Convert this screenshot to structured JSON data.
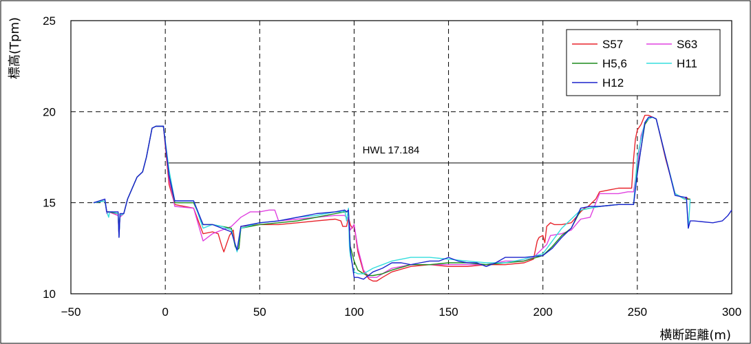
{
  "chart_data": {
    "type": "line",
    "title": "",
    "xlabel": "横断距離(m)",
    "ylabel": "標高(Tpm)",
    "xlim": [
      -50,
      300
    ],
    "ylim": [
      10,
      25
    ],
    "x_ticks": [
      -50,
      0,
      50,
      100,
      150,
      200,
      250,
      300
    ],
    "y_ticks": [
      10,
      15,
      20,
      25
    ],
    "x_tick_labels": [
      "−50",
      "0",
      "50",
      "100",
      "150",
      "200",
      "250",
      "300"
    ],
    "y_tick_labels": [
      "10",
      "15",
      "20",
      "25"
    ],
    "grid": true,
    "legend_position": "top-right",
    "annotations": [
      {
        "text": "HWL 17.184",
        "type": "hline",
        "y": 17.184,
        "x_range": [
          1,
          249
        ]
      }
    ],
    "series": [
      {
        "name": "S57",
        "color": "#e8222a",
        "x": [
          -38,
          -32,
          -31,
          -30,
          -25,
          -24.5,
          -24,
          -22,
          -20,
          -15,
          -12,
          -10,
          -7,
          -5,
          -1,
          2,
          5,
          15,
          20,
          25,
          28,
          30,
          31,
          32,
          34,
          36,
          37,
          38,
          39,
          40,
          50,
          60,
          70,
          80,
          90,
          93,
          94,
          96,
          97,
          98,
          99,
          100,
          102,
          105,
          108,
          110,
          112,
          115,
          120,
          130,
          140,
          150,
          160,
          170,
          180,
          190,
          195,
          197,
          198,
          200,
          201,
          202,
          204,
          206,
          210,
          215,
          220,
          222,
          224,
          228,
          230,
          240,
          245,
          247,
          248,
          249,
          250,
          252,
          254,
          256,
          258,
          260,
          265,
          270,
          275,
          276,
          277,
          278
        ],
        "y": [
          15.0,
          15.1,
          14.5,
          14.5,
          14.3,
          13.2,
          14.3,
          14.4,
          15.2,
          16.4,
          16.7,
          17.5,
          19.1,
          19.2,
          19.2,
          16.0,
          14.9,
          14.7,
          13.3,
          13.4,
          13.3,
          12.6,
          12.3,
          12.6,
          13.2,
          13.5,
          12.6,
          12.4,
          12.5,
          13.7,
          13.8,
          13.8,
          13.9,
          14.0,
          14.1,
          14.0,
          13.7,
          13.7,
          14.2,
          13.8,
          13.6,
          13.8,
          12.3,
          11.2,
          10.8,
          10.7,
          10.7,
          10.9,
          11.2,
          11.5,
          11.6,
          11.5,
          11.5,
          11.6,
          11.6,
          11.7,
          11.9,
          12.9,
          13.1,
          13.2,
          12.8,
          13.7,
          13.9,
          13.8,
          13.8,
          13.9,
          14.5,
          14.7,
          14.8,
          15.2,
          15.6,
          15.8,
          15.8,
          15.8,
          17.4,
          18.5,
          19.0,
          19.3,
          19.8,
          19.8,
          19.7,
          19.6,
          17.4,
          15.5,
          15.2,
          15.3,
          15.2,
          15.2
        ]
      },
      {
        "name": "S63",
        "color": "#e040e0",
        "x": [
          -38,
          -32,
          -31,
          -30,
          -25,
          -24.5,
          -24,
          -22,
          -20,
          -15,
          -12,
          -10,
          -7,
          -5,
          -1,
          2,
          5,
          15,
          20,
          25,
          30,
          35,
          40,
          45,
          50,
          55,
          58,
          60,
          70,
          80,
          90,
          93,
          95,
          97,
          98,
          100,
          102,
          105,
          108,
          110,
          112,
          115,
          120,
          130,
          140,
          150,
          160,
          170,
          180,
          190,
          195,
          200,
          202,
          204,
          210,
          215,
          220,
          225,
          230,
          240,
          245,
          248,
          250,
          252,
          254,
          256,
          258,
          260,
          265,
          270,
          275,
          278
        ],
        "y": [
          15.0,
          15.1,
          14.4,
          14.5,
          14.3,
          13.1,
          14.2,
          14.4,
          15.2,
          16.4,
          16.7,
          17.5,
          19.1,
          19.2,
          19.2,
          16.3,
          14.8,
          14.7,
          12.9,
          13.3,
          13.5,
          13.7,
          14.2,
          14.5,
          14.5,
          14.6,
          14.6,
          14.0,
          14.1,
          14.2,
          14.3,
          14.3,
          14.3,
          14.1,
          13.5,
          13.8,
          12.5,
          11.3,
          10.9,
          10.9,
          10.9,
          11.1,
          11.4,
          11.6,
          11.6,
          11.6,
          11.6,
          11.6,
          11.8,
          11.8,
          12.0,
          12.5,
          12.7,
          13.2,
          13.3,
          13.5,
          14.1,
          14.2,
          15.5,
          15.5,
          15.6,
          15.6,
          17.0,
          18.7,
          19.3,
          19.6,
          19.7,
          19.6,
          17.5,
          15.5,
          15.2,
          15.2
        ]
      },
      {
        "name": "H5,6",
        "color": "#1a8a1a",
        "x": [
          -38,
          -32,
          -31,
          -30,
          -25,
          -24.5,
          -24,
          -22,
          -20,
          -15,
          -12,
          -10,
          -7,
          -5,
          -1,
          2,
          5,
          15,
          20,
          25,
          30,
          35,
          37,
          38,
          39,
          40,
          50,
          60,
          70,
          80,
          90,
          95,
          97,
          98,
          100,
          102,
          105,
          108,
          110,
          115,
          120,
          130,
          140,
          150,
          160,
          170,
          180,
          190,
          200,
          205,
          210,
          215,
          220,
          225,
          230,
          240,
          245,
          248,
          250,
          252,
          254,
          256,
          258,
          260,
          265,
          270,
          275,
          278
        ],
        "y": [
          15.0,
          15.1,
          14.5,
          14.5,
          14.4,
          13.2,
          14.3,
          14.4,
          15.2,
          16.4,
          16.7,
          17.5,
          19.1,
          19.2,
          19.2,
          16.5,
          15.0,
          15.0,
          13.8,
          13.8,
          13.7,
          13.6,
          12.6,
          12.4,
          12.5,
          13.6,
          13.8,
          13.9,
          14.0,
          14.2,
          14.4,
          14.5,
          14.5,
          12.6,
          11.8,
          11.3,
          11.1,
          11.0,
          11.0,
          11.1,
          11.3,
          11.6,
          11.6,
          11.7,
          11.7,
          11.6,
          11.7,
          11.8,
          12.1,
          12.6,
          13.2,
          13.6,
          14.6,
          14.7,
          14.8,
          14.9,
          14.9,
          14.9,
          16.8,
          18.0,
          19.3,
          19.6,
          19.7,
          19.6,
          17.5,
          15.5,
          15.2,
          15.2
        ]
      },
      {
        "name": "H11",
        "color": "#33dddd",
        "x": [
          -38,
          -32,
          -31,
          -30,
          -29.5,
          -28,
          -25,
          -24.5,
          -24,
          -22,
          -20,
          -15,
          -12,
          -10,
          -7,
          -5,
          -1,
          2,
          5,
          15,
          20,
          25,
          30,
          35,
          38,
          40,
          50,
          60,
          70,
          80,
          90,
          94,
          95,
          96,
          97,
          97.5,
          98,
          100,
          102,
          105,
          110,
          115,
          120,
          130,
          140,
          150,
          160,
          170,
          180,
          190,
          200,
          205,
          210,
          220,
          225,
          230,
          240,
          245,
          248,
          250,
          252,
          254,
          256,
          258,
          260,
          265,
          270,
          275,
          276,
          277,
          278
        ],
        "y": [
          15.0,
          15.1,
          14.5,
          14.2,
          14.5,
          14.5,
          14.4,
          13.1,
          14.3,
          14.4,
          15.2,
          16.4,
          16.7,
          17.5,
          19.1,
          19.2,
          19.2,
          16.8,
          15.1,
          15.1,
          13.6,
          13.8,
          13.7,
          13.5,
          12.3,
          13.6,
          13.9,
          14.0,
          14.2,
          14.3,
          14.5,
          14.5,
          14.6,
          14.0,
          14.7,
          12.6,
          12.1,
          11.2,
          11.1,
          11.1,
          11.4,
          11.6,
          11.8,
          12.0,
          12.0,
          11.9,
          11.8,
          11.7,
          11.7,
          11.9,
          12.2,
          12.9,
          13.6,
          14.6,
          14.7,
          14.8,
          14.9,
          14.9,
          14.9,
          17.5,
          18.5,
          19.4,
          19.6,
          19.7,
          19.6,
          17.5,
          15.5,
          15.2,
          15.2,
          13.6,
          15.2
        ]
      },
      {
        "name": "H12",
        "color": "#1a22cc",
        "x": [
          -38,
          -32,
          -31,
          -30,
          -28,
          -25,
          -24.5,
          -24,
          -22,
          -20,
          -15,
          -12,
          -10,
          -7,
          -5,
          -1,
          2,
          5,
          15,
          20,
          25,
          30,
          35,
          38,
          40,
          50,
          60,
          70,
          80,
          90,
          95,
          96,
          97,
          98,
          100,
          102,
          105,
          110,
          115,
          120,
          125,
          130,
          135,
          140,
          145,
          150,
          155,
          160,
          165,
          170,
          175,
          180,
          190,
          200,
          205,
          210,
          215,
          220,
          225,
          230,
          240,
          245,
          248,
          250,
          252,
          254,
          256,
          258,
          260,
          265,
          270,
          275,
          276,
          277,
          278,
          280,
          290,
          295,
          298,
          300
        ],
        "y": [
          15.0,
          15.2,
          14.5,
          14.5,
          14.5,
          14.5,
          13.1,
          14.4,
          14.4,
          15.2,
          16.4,
          16.7,
          17.5,
          19.1,
          19.2,
          19.2,
          16.5,
          15.1,
          15.1,
          13.8,
          13.8,
          13.6,
          13.4,
          12.4,
          13.7,
          13.9,
          14.0,
          14.2,
          14.4,
          14.5,
          14.6,
          14.5,
          14.6,
          12.4,
          10.9,
          10.9,
          10.8,
          11.2,
          11.4,
          11.7,
          11.7,
          11.6,
          11.7,
          11.8,
          11.8,
          12.0,
          11.8,
          11.7,
          11.7,
          11.5,
          11.7,
          12.0,
          12.0,
          12.1,
          12.5,
          13.1,
          13.6,
          14.7,
          14.8,
          14.8,
          14.9,
          14.9,
          14.9,
          16.6,
          18.0,
          19.4,
          19.7,
          19.7,
          19.6,
          17.5,
          15.4,
          15.3,
          15.3,
          13.6,
          14.0,
          14.0,
          13.9,
          14.0,
          14.3,
          14.6
        ]
      }
    ]
  }
}
